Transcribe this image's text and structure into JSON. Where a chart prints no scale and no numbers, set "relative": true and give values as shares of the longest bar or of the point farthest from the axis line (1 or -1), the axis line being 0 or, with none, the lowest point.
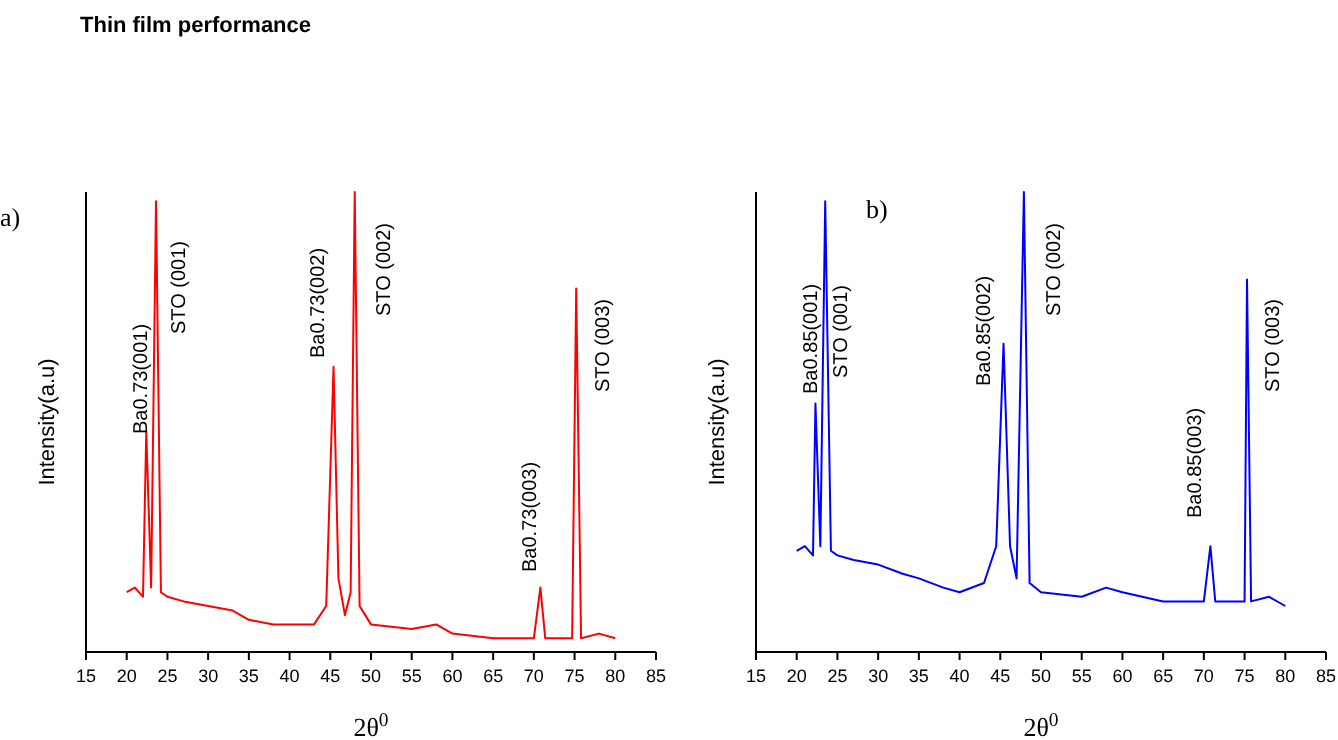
{
  "chart_data": [
    {
      "type": "line",
      "title": "Thin film performance",
      "xlabel": "2θ$^{0}$",
      "ylabel": "Intensity(a.u)",
      "relative": true,
      "tick_labels": "x",
      "xlim": [
        15,
        85
      ],
      "xticks": [
        15,
        20,
        25,
        30,
        35,
        40,
        45,
        50,
        55,
        60,
        65,
        70,
        75,
        80,
        85
      ],
      "series": [
        {
          "color": "#ff0000",
          "x": [
            20,
            21,
            22,
            22.4,
            23,
            23.6,
            24.2,
            25,
            27,
            30,
            33,
            35,
            38,
            40,
            43,
            44.5,
            45.4,
            46,
            46.8,
            47.5,
            48,
            48.6,
            50,
            55,
            58,
            60,
            65,
            70,
            70.8,
            71.4,
            74.7,
            75.2,
            75.8,
            78,
            80
          ],
          "values": [
            0.13,
            0.14,
            0.12,
            0.48,
            0.14,
            0.98,
            0.13,
            0.12,
            0.11,
            0.1,
            0.09,
            0.07,
            0.06,
            0.06,
            0.06,
            0.1,
            0.62,
            0.16,
            0.08,
            0.13,
            1.0,
            0.1,
            0.06,
            0.05,
            0.06,
            0.04,
            0.03,
            0.03,
            0.14,
            0.03,
            0.03,
            0.79,
            0.03,
            0.04,
            0.03
          ]
        }
      ],
      "annotations": [
        "a)",
        "Ba0.73(001)",
        "STO (001)",
        "Ba0.73(002)",
        "STO (002)",
        "Ba0.73(003)",
        "STO (003)"
      ]
    },
    {
      "type": "line",
      "xlabel": "2θ$^{0}$",
      "ylabel": "Intensity(a.u)",
      "relative": true,
      "tick_labels": "x",
      "xlim": [
        15,
        85
      ],
      "xticks": [
        15,
        20,
        25,
        30,
        35,
        40,
        45,
        50,
        55,
        60,
        65,
        70,
        75,
        80,
        85
      ],
      "series": [
        {
          "color": "#0000ff",
          "x": [
            20,
            21,
            22,
            22.3,
            22.9,
            23.5,
            24.2,
            25,
            27,
            30,
            33,
            35,
            38,
            40,
            43,
            44.5,
            45.4,
            46.2,
            47,
            47.9,
            48.6,
            50,
            55,
            58,
            60,
            65,
            70,
            70.8,
            71.4,
            75,
            75.3,
            75.8,
            78,
            80
          ],
          "values": [
            0.22,
            0.23,
            0.21,
            0.54,
            0.23,
            0.98,
            0.22,
            0.21,
            0.2,
            0.19,
            0.17,
            0.16,
            0.14,
            0.13,
            0.15,
            0.23,
            0.67,
            0.23,
            0.16,
            1.0,
            0.15,
            0.13,
            0.12,
            0.14,
            0.13,
            0.11,
            0.11,
            0.23,
            0.11,
            0.11,
            0.81,
            0.11,
            0.12,
            0.1
          ]
        }
      ],
      "annotations": [
        "b)",
        "Ba0.85(001)",
        "STO (001)",
        "Ba0.85(002)",
        "STO (002)",
        "Ba0.85(003)",
        "STO (003)"
      ]
    }
  ]
}
